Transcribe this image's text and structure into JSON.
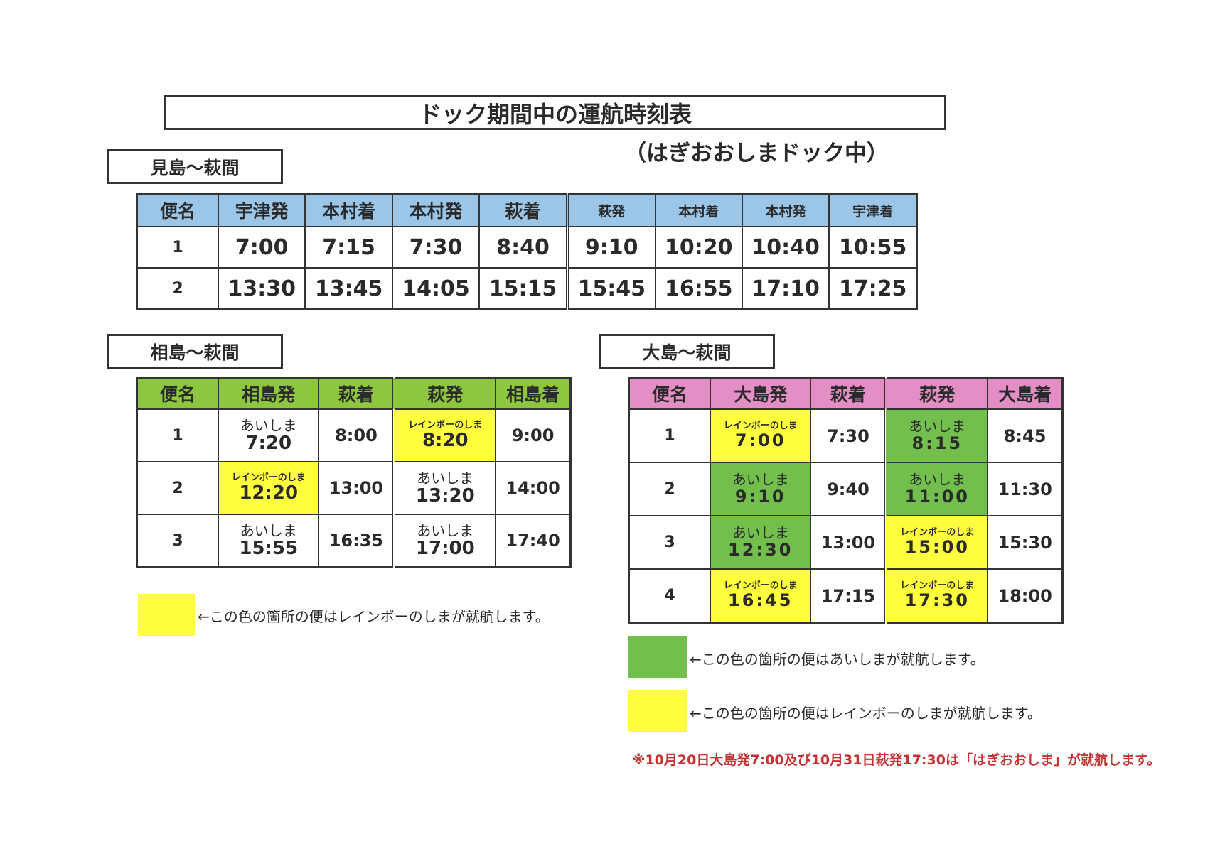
{
  "title": "ドック期間中の運航時刻表",
  "subtitle": "（はぎおおしまドック中）",
  "colors": {
    "rainbow": "#ffff40",
    "aishima": "#72bf4e",
    "mishima_header": "#9cc6e8",
    "aishima_header": "#8dc63f",
    "oshima_header": "#e38fc6",
    "note": "#c83232"
  },
  "ships": {
    "rainbow": "レインボーのしま",
    "aishima": "あいしま"
  },
  "mishima": {
    "label": "見島～萩間",
    "headers": [
      "便名",
      "宇津発",
      "本村着",
      "本村発",
      "萩着",
      "萩発",
      "本村着",
      "本村発",
      "宇津着"
    ],
    "rows": [
      {
        "no": "1",
        "cells": [
          {
            "time": "7:00"
          },
          {
            "time": "7:15"
          },
          {
            "time": "7:30"
          },
          {
            "time": "8:40"
          },
          {
            "time": "9:10"
          },
          {
            "time": "10:20"
          },
          {
            "time": "10:40"
          },
          {
            "time": "10:55"
          }
        ]
      },
      {
        "no": "2",
        "cells": [
          {
            "time": "13:30"
          },
          {
            "time": "13:45"
          },
          {
            "time": "14:05"
          },
          {
            "time": "15:15"
          },
          {
            "time": "15:45"
          },
          {
            "time": "16:55"
          },
          {
            "time": "17:10"
          },
          {
            "time": "17:25"
          }
        ]
      }
    ]
  },
  "aishima": {
    "label": "相島～萩間",
    "headers": [
      "便名",
      "相島発",
      "萩着",
      "萩発",
      "相島着"
    ],
    "rows": [
      {
        "no": "1",
        "cells": [
          {
            "time": "7:20",
            "ship": "aishima",
            "plain": true
          },
          {
            "time": "8:00"
          },
          {
            "time": "8:20",
            "ship": "rainbow"
          },
          {
            "time": "9:00"
          }
        ]
      },
      {
        "no": "2",
        "cells": [
          {
            "time": "12:20",
            "ship": "rainbow"
          },
          {
            "time": "13:00"
          },
          {
            "time": "13:20",
            "ship": "aishima",
            "plain": true
          },
          {
            "time": "14:00"
          }
        ]
      },
      {
        "no": "3",
        "cells": [
          {
            "time": "15:55",
            "ship": "aishima",
            "plain": true
          },
          {
            "time": "16:35"
          },
          {
            "time": "17:00",
            "ship": "aishima",
            "plain": true
          },
          {
            "time": "17:40"
          }
        ]
      }
    ],
    "legend_rainbow": "←この色の箇所の便はレインボーのしまが就航します。"
  },
  "oshima": {
    "label": "大島～萩間",
    "headers": [
      "便名",
      "大島発",
      "萩着",
      "萩発",
      "大島着"
    ],
    "rows": [
      {
        "no": "1",
        "cells": [
          {
            "time": "7:00",
            "ship": "rainbow"
          },
          {
            "time": "7:30"
          },
          {
            "time": "8:15",
            "ship": "aishima"
          },
          {
            "time": "8:45"
          }
        ]
      },
      {
        "no": "2",
        "cells": [
          {
            "time": "9:10",
            "ship": "aishima"
          },
          {
            "time": "9:40"
          },
          {
            "time": "11:00",
            "ship": "aishima"
          },
          {
            "time": "11:30"
          }
        ]
      },
      {
        "no": "3",
        "cells": [
          {
            "time": "12:30",
            "ship": "aishima"
          },
          {
            "time": "13:00"
          },
          {
            "time": "15:00",
            "ship": "rainbow"
          },
          {
            "time": "15:30"
          }
        ]
      },
      {
        "no": "4",
        "cells": [
          {
            "time": "16:45",
            "ship": "rainbow"
          },
          {
            "time": "17:15"
          },
          {
            "time": "17:30",
            "ship": "rainbow"
          },
          {
            "time": "18:00"
          }
        ]
      }
    ],
    "legend_aishima": "←この色の箇所の便はあいしまが就航します。",
    "legend_rainbow": "←この色の箇所の便はレインボーのしまが就航します。"
  },
  "note": "※10月20日大島発7:00及び10月31日萩発17:30は「はぎおおしま」が就航します。"
}
